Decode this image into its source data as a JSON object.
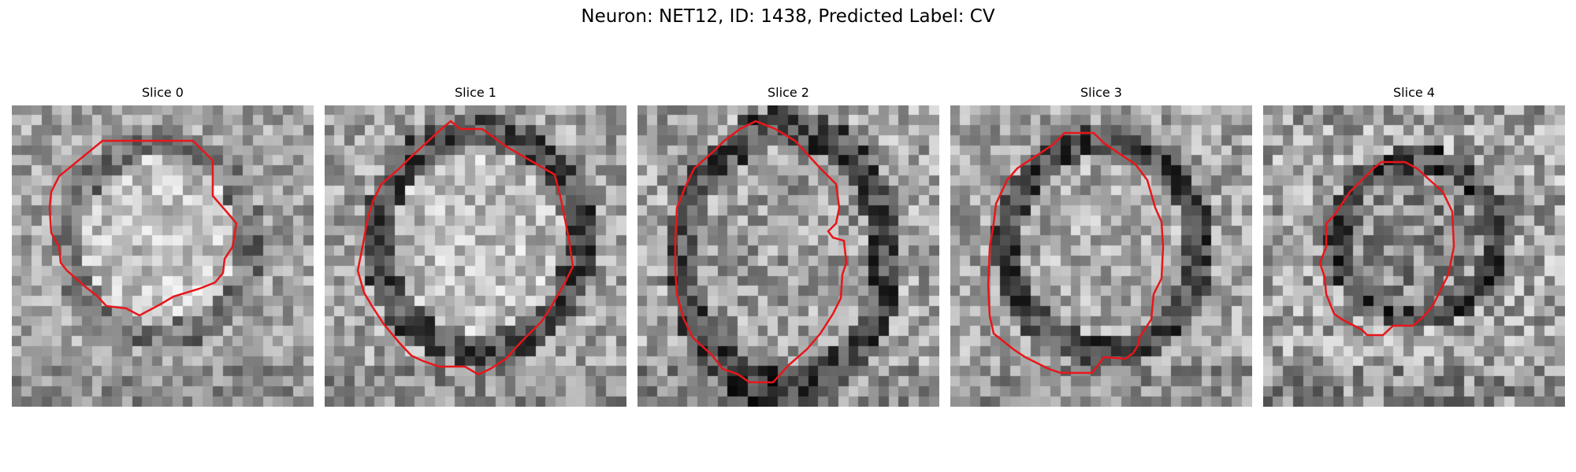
{
  "figure": {
    "title": "Neuron: NET12, ID: 1438, Predicted Label: CV",
    "contour_color": "#e8161a",
    "colormap": "grayscale"
  },
  "panels": [
    {
      "title": "Slice 0",
      "seed": 11,
      "center": [
        0.49,
        0.45
      ],
      "radius": [
        0.32,
        0.34
      ],
      "inner": 0.76,
      "ring": 0.45,
      "jitter": 0.2
    },
    {
      "title": "Slice 1",
      "seed": 23,
      "center": [
        0.51,
        0.45
      ],
      "radius": [
        0.36,
        0.38
      ],
      "inner": 0.74,
      "ring": 0.3,
      "jitter": 0.22
    },
    {
      "title": "Slice 2",
      "seed": 37,
      "center": [
        0.49,
        0.51
      ],
      "radius": [
        0.36,
        0.46
      ],
      "inner": 0.62,
      "ring": 0.3,
      "jitter": 0.24
    },
    {
      "title": "Slice 3",
      "seed": 51,
      "center": [
        0.51,
        0.47
      ],
      "radius": [
        0.34,
        0.37
      ],
      "inner": 0.66,
      "ring": 0.28,
      "jitter": 0.22
    },
    {
      "title": "Slice 4",
      "seed": 67,
      "center": [
        0.51,
        0.44
      ],
      "radius": [
        0.28,
        0.28
      ],
      "inner": 0.55,
      "ring": 0.28,
      "jitter": 0.26
    }
  ]
}
